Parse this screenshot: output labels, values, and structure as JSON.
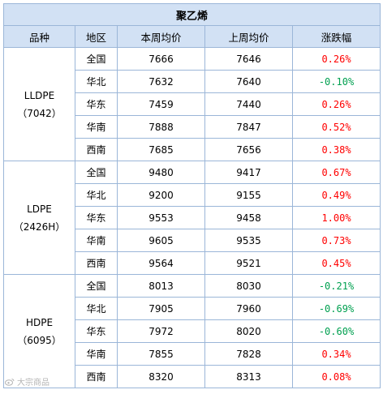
{
  "title": "聚乙烯",
  "headers": [
    "品种",
    "地区",
    "本周均价",
    "上周均价",
    "涨跌幅"
  ],
  "colors": {
    "up": "#ff0000",
    "down": "#00a050",
    "header_bg": "#d2e1f4",
    "border": "#9bb6d8"
  },
  "groups": [
    {
      "name": "LLDPE",
      "code": "（7042）",
      "rows": [
        {
          "region": "全国",
          "this_week": "7666",
          "last_week": "7646",
          "change": "0.26%",
          "dir": "up"
        },
        {
          "region": "华北",
          "this_week": "7632",
          "last_week": "7640",
          "change": "-0.10%",
          "dir": "down"
        },
        {
          "region": "华东",
          "this_week": "7459",
          "last_week": "7440",
          "change": "0.26%",
          "dir": "up"
        },
        {
          "region": "华南",
          "this_week": "7888",
          "last_week": "7847",
          "change": "0.52%",
          "dir": "up"
        },
        {
          "region": "西南",
          "this_week": "7685",
          "last_week": "7656",
          "change": "0.38%",
          "dir": "up"
        }
      ]
    },
    {
      "name": "LDPE",
      "code": "（2426H）",
      "rows": [
        {
          "region": "全国",
          "this_week": "9480",
          "last_week": "9417",
          "change": "0.67%",
          "dir": "up"
        },
        {
          "region": "华北",
          "this_week": "9200",
          "last_week": "9155",
          "change": "0.49%",
          "dir": "up"
        },
        {
          "region": "华东",
          "this_week": "9553",
          "last_week": "9458",
          "change": "1.00%",
          "dir": "up"
        },
        {
          "region": "华南",
          "this_week": "9605",
          "last_week": "9535",
          "change": "0.73%",
          "dir": "up"
        },
        {
          "region": "西南",
          "this_week": "9564",
          "last_week": "9521",
          "change": "0.45%",
          "dir": "up"
        }
      ]
    },
    {
      "name": "HDPE",
      "code": "（6095）",
      "rows": [
        {
          "region": "全国",
          "this_week": "8013",
          "last_week": "8030",
          "change": "-0.21%",
          "dir": "down"
        },
        {
          "region": "华北",
          "this_week": "7905",
          "last_week": "7960",
          "change": "-0.69%",
          "dir": "down"
        },
        {
          "region": "华东",
          "this_week": "7972",
          "last_week": "8020",
          "change": "-0.60%",
          "dir": "down"
        },
        {
          "region": "华南",
          "this_week": "7855",
          "last_week": "7828",
          "change": "0.34%",
          "dir": "up"
        },
        {
          "region": "西南",
          "this_week": "8320",
          "last_week": "8313",
          "change": "0.08%",
          "dir": "up"
        }
      ]
    }
  ],
  "watermark": {
    "icon": "weibo-icon",
    "text": "大宗商品"
  }
}
